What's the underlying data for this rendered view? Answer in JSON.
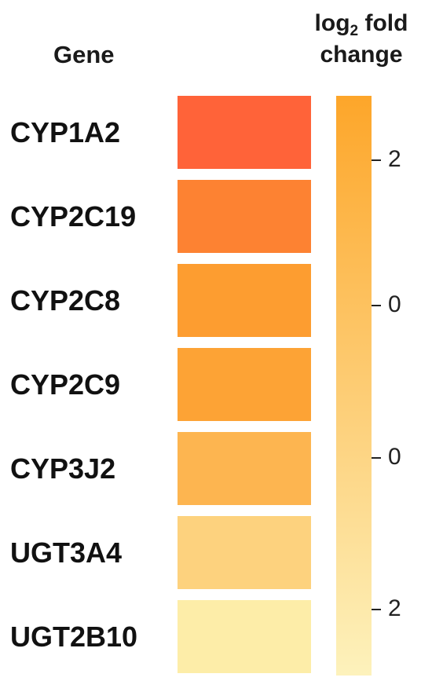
{
  "chart_data": {
    "type": "heatmap",
    "row_header": "Gene",
    "legend_title_main": "log",
    "legend_title_sub": "2",
    "legend_title_rest": " fold",
    "legend_title_line2": "change",
    "rows": [
      "CYP1A2",
      "CYP2C19",
      "CYP2C8",
      "CYP2C9",
      "CYP3J2",
      "UGT3A4",
      "UGT2B10"
    ],
    "colors": [
      "#ff6339",
      "#fd8232",
      "#fd9d30",
      "#fda335",
      "#fdb550",
      "#fdd27e",
      "#fdeda8"
    ],
    "colorbar": {
      "top_color": "#fda62a",
      "bottom_color": "#fdf2bc"
    },
    "colorbar_ticks": [
      "2",
      "0",
      "0",
      "2"
    ]
  }
}
